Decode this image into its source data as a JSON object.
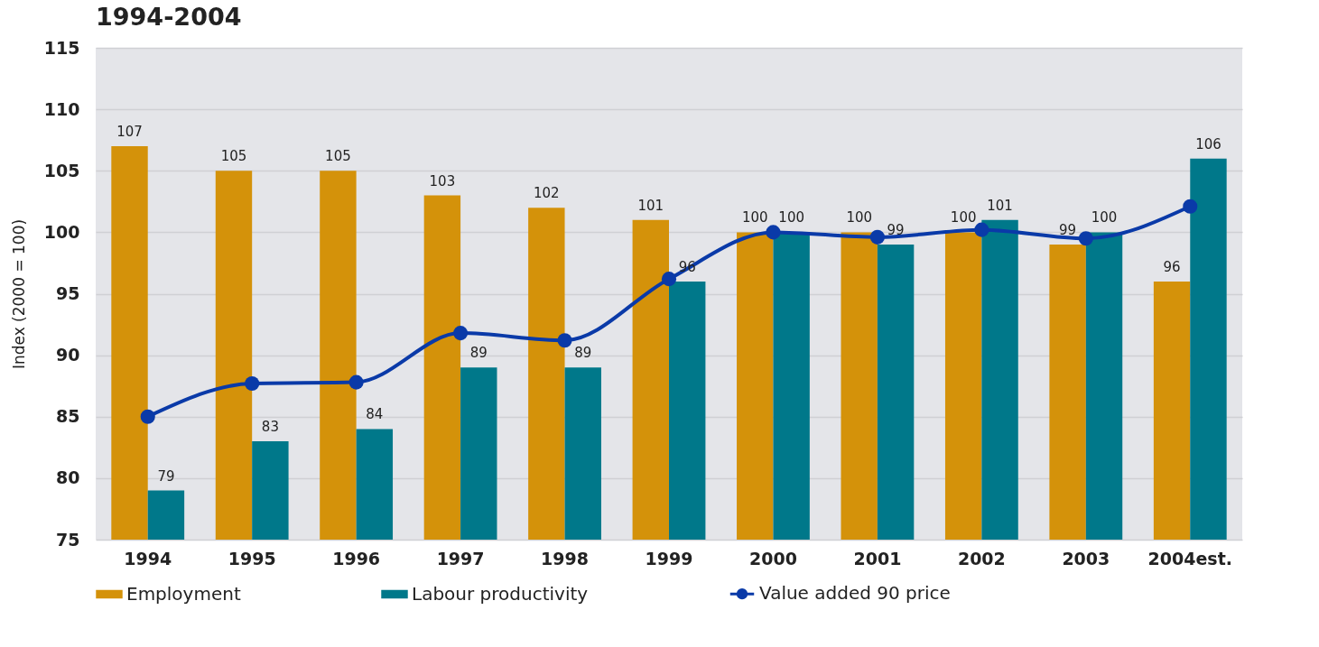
{
  "chart_data": {
    "type": "bar",
    "title": "1994-2004",
    "ylabel": "Index (2000 = 100)",
    "categories": [
      "1994",
      "1995",
      "1996",
      "1997",
      "1998",
      "1999",
      "2000",
      "2001",
      "2002",
      "2003",
      "2004est."
    ],
    "series": [
      {
        "name": "Employment",
        "type": "bar",
        "color": "#d4920a",
        "values": [
          107,
          105,
          105,
          103,
          102,
          101,
          100,
          100,
          100,
          99,
          96
        ],
        "value_labels": [
          "107",
          "105",
          "105",
          "103",
          "102",
          "101",
          "100",
          "100",
          "100",
          "99",
          "96"
        ]
      },
      {
        "name": "Labour productivity",
        "type": "bar",
        "color": "#00788a",
        "values": [
          79,
          83,
          84,
          89,
          89,
          96,
          100,
          99,
          101,
          100,
          106
        ],
        "value_labels": [
          "79",
          "83",
          "84",
          "89",
          "89",
          "96",
          "100",
          "99",
          "101",
          "100",
          "106"
        ]
      },
      {
        "name": "Value added 90 price",
        "type": "line",
        "color": "#0a3aa8",
        "values": [
          85,
          87.7,
          87.8,
          91.8,
          91.2,
          96.2,
          100,
          99.6,
          100.2,
          99.5,
          102.1
        ]
      }
    ],
    "ylim": [
      75,
      115
    ],
    "yticks": [
      75,
      80,
      85,
      90,
      95,
      100,
      105,
      110,
      115
    ],
    "grid": "y",
    "legend": "bottom",
    "marker": "circle",
    "line_style": "solid"
  }
}
